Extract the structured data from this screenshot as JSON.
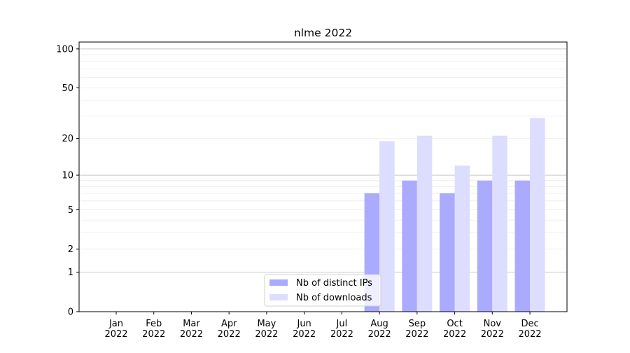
{
  "chart_data": {
    "type": "bar",
    "title": "nlme 2022",
    "xlabel": "",
    "ylabel": "",
    "yscale": "symlog (log10(1+y))",
    "ylim": [
      0,
      113
    ],
    "yticks": [
      0,
      1,
      2,
      5,
      10,
      20,
      50,
      100
    ],
    "grid": true,
    "legend_placement": "lower-center",
    "categories": [
      "Jan\n2022",
      "Feb\n2022",
      "Mar\n2022",
      "Apr\n2022",
      "May\n2022",
      "Jun\n2022",
      "Jul\n2022",
      "Aug\n2022",
      "Sep\n2022",
      "Oct\n2022",
      "Nov\n2022",
      "Dec\n2022"
    ],
    "series": [
      {
        "name": "Nb of distinct IPs",
        "color": "#aaaaff",
        "values": [
          0,
          0,
          0,
          0,
          0,
          0,
          0,
          7,
          9,
          7,
          9,
          9
        ]
      },
      {
        "name": "Nb of downloads",
        "color": "#ddddff",
        "values": [
          0,
          0,
          0,
          0,
          0,
          0,
          0,
          19,
          21,
          12,
          21,
          29
        ]
      }
    ]
  }
}
